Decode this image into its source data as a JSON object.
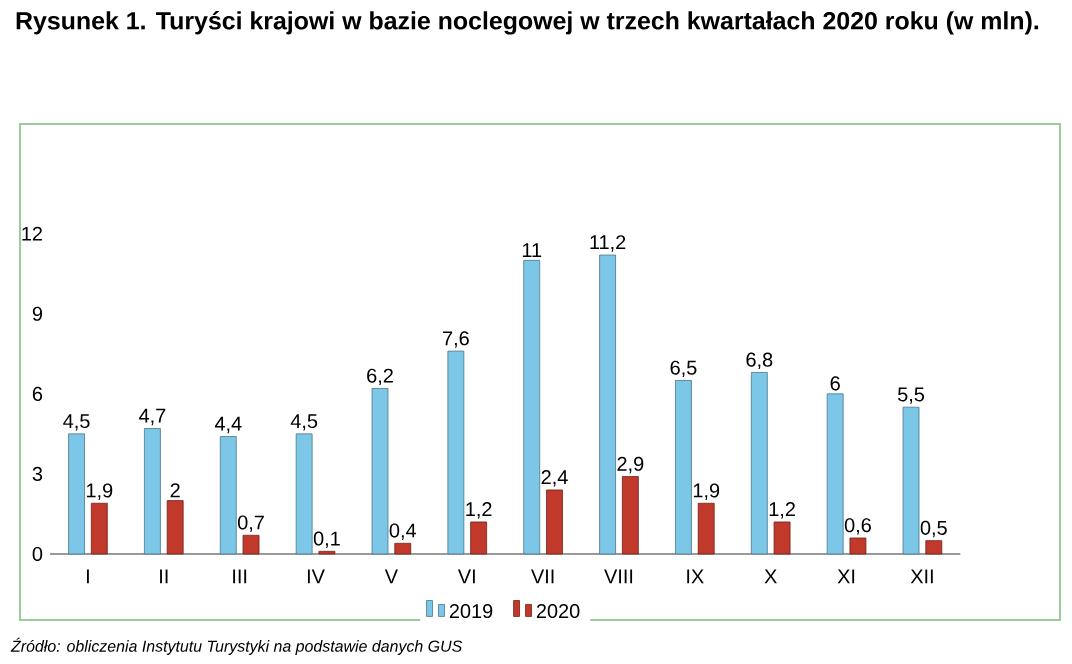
{
  "chart_data": {
    "type": "bar",
    "title": "Rysunek 1. Turyści krajowi w bazie noclegowej w trzech kwartałach 2020 roku (w mln).",
    "categories": [
      "I",
      "II",
      "III",
      "IV",
      "V",
      "VI",
      "VII",
      "VIII",
      "IX",
      "X",
      "XI",
      "XII"
    ],
    "series": [
      {
        "name": "2019",
        "color": "#7cc6e8",
        "values": [
          4.5,
          4.7,
          4.4,
          4.5,
          6.2,
          7.6,
          11,
          11.2,
          6.5,
          6.8,
          6,
          5.5
        ],
        "value_labels": [
          "4,5",
          "4,7",
          "4,4",
          "4,5",
          "6,2",
          "7,6",
          "11",
          "11,2",
          "6,5",
          "6,8",
          "6",
          "5,5"
        ]
      },
      {
        "name": "2020",
        "color": "#c0392b",
        "values": [
          1.9,
          2,
          0.7,
          0.1,
          0.4,
          1.2,
          2.4,
          2.9,
          1.9,
          1.2,
          0.6,
          0.5
        ],
        "value_labels": [
          "1,9",
          "2",
          "0,7",
          "0,1",
          "0,4",
          "1,2",
          "2,4",
          "2,9",
          "1,9",
          "1,2",
          "0,6",
          "0,5"
        ]
      }
    ],
    "ylim": [
      0,
      12
    ],
    "yticks": [
      0,
      3,
      6,
      9,
      12
    ],
    "legend": "bottom",
    "annotations": [
      "*Źródło: obliczenia Instytutu Turystyki na podstawie danych GUS*"
    ]
  }
}
